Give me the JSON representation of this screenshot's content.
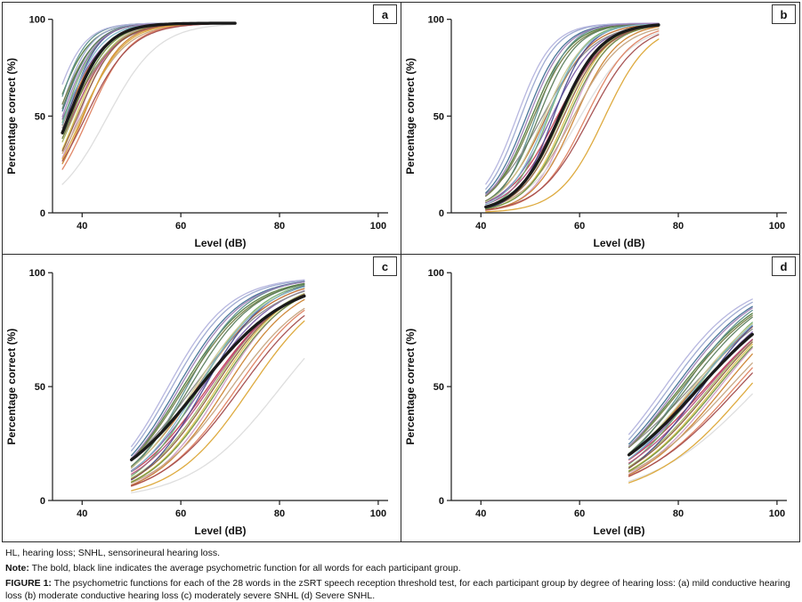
{
  "chart_data": {
    "type": "line",
    "description": "Psychometric functions (percentage correct vs presentation level in dB) for each of the 28 words of the zSRT speech reception threshold test, one panel per participant group; the bold black line is the average psychometric function for each group",
    "xlabel": "Level (dB)",
    "ylabel": "Percentage correct (%)",
    "x_ticks": [
      40,
      60,
      80,
      100
    ],
    "y_ticks": [
      0,
      50,
      100
    ],
    "x_domain": [
      34,
      102
    ],
    "y_domain": [
      0,
      100
    ],
    "legend": "none",
    "grid": false,
    "mean_color": "#1a1a1a",
    "palette": [
      "#4f7a3c",
      "#c0692b",
      "#9aa7cf",
      "#c23b4f",
      "#d9c44e",
      "#5d8f8f",
      "#7b5ea8",
      "#cf9cc6",
      "#8c8c8c",
      "#dcdcdc",
      "#3f6f93",
      "#a3b264",
      "#cc8433",
      "#6fae6f",
      "#b34e7e",
      "#737d43",
      "#c6a47e",
      "#4c4c90",
      "#de8160",
      "#5c7d5c",
      "#b3b3dd",
      "#8c5c3c",
      "#c8c890",
      "#7fb6c9",
      "#a34c4c",
      "#dca636",
      "#9e7fb6",
      "#6e8f3f"
    ],
    "panels": [
      {
        "panel_label": "a",
        "group": "mild conductive hearing loss",
        "x_start": 36,
        "x_end": 71,
        "y_max_percent": 98,
        "mean_curve": {
          "midpoint_db": 37.2,
          "slope_db": 3.8,
          "color": "#1a1a1a",
          "description": "average psychometric function"
        },
        "word_curves": {
          "count": 28,
          "midpoints_db": [
            34.2,
            36.6,
            35.1,
            37.4,
            38.6,
            34.6,
            36.1,
            39.2,
            37.0,
            45.0,
            35.5,
            38.1,
            40.1,
            36.3,
            37.9,
            34.9,
            39.6,
            36.9,
            41.2,
            35.3,
            33.6,
            38.9,
            37.3,
            36.5,
            40.6,
            39.9,
            35.9,
            37.7
          ],
          "slopes_db": [
            3.5,
            4.0,
            3.2,
            4.5,
            3.8,
            3.0,
            4.2,
            3.6,
            4.8,
            5.2,
            3.4,
            4.1,
            3.9,
            3.3,
            4.4,
            3.7,
            4.6,
            3.1,
            4.3,
            3.5,
            3.2,
            4.0,
            3.8,
            3.6,
            4.7,
            4.2,
            3.4,
            3.9
          ]
        }
      },
      {
        "panel_label": "b",
        "group": "moderate conductive hearing loss",
        "x_start": 41,
        "x_end": 76,
        "y_max_percent": 98,
        "mean_curve": {
          "midpoint_db": 55.8,
          "slope_db": 4.3,
          "color": "#1a1a1a",
          "description": "average psychometric function"
        },
        "word_curves": {
          "count": 28,
          "midpoints_db": [
            50.2,
            53.1,
            48.0,
            55.3,
            57.2,
            51.0,
            54.2,
            58.1,
            52.3,
            60.0,
            49.1,
            56.2,
            59.0,
            53.6,
            55.7,
            50.6,
            58.6,
            54.6,
            61.2,
            51.6,
            47.2,
            56.6,
            52.7,
            53.3,
            62.0,
            65.0,
            49.6,
            57.6
          ],
          "slopes_db": [
            4.0,
            4.5,
            3.6,
            5.0,
            4.2,
            3.5,
            4.6,
            4.0,
            5.2,
            5.5,
            3.8,
            4.4,
            4.3,
            3.7,
            4.8,
            4.1,
            5.0,
            3.6,
            4.7,
            3.9,
            3.6,
            4.4,
            4.2,
            4.0,
            5.1,
            4.6,
            3.8,
            4.3
          ]
        }
      },
      {
        "panel_label": "c",
        "group": "moderately severe SNHL",
        "x_start": 50,
        "x_end": 85,
        "y_max_percent": 98,
        "mean_curve": {
          "midpoint_db": 63.5,
          "slope_db": 9.0,
          "color": "#1a1a1a",
          "description": "average psychometric function"
        },
        "word_curves": {
          "count": 28,
          "midpoints_db": [
            60.2,
            63.1,
            58.0,
            65.3,
            67.2,
            61.0,
            64.2,
            68.1,
            62.3,
            80.0,
            59.1,
            66.2,
            69.0,
            63.6,
            65.7,
            60.6,
            70.1,
            64.6,
            71.2,
            61.6,
            57.2,
            66.6,
            62.7,
            63.3,
            72.0,
            74.0,
            59.6,
            67.6
          ],
          "slopes_db": [
            7.0,
            7.5,
            6.4,
            8.0,
            7.2,
            6.2,
            7.6,
            7.0,
            8.4,
            9.0,
            6.6,
            7.4,
            7.3,
            6.5,
            7.8,
            7.1,
            8.2,
            6.4,
            7.9,
            6.8,
            6.3,
            7.4,
            7.2,
            7.0,
            8.3,
            7.8,
            6.6,
            7.3
          ]
        }
      },
      {
        "panel_label": "d",
        "group": "Severe SNHL",
        "x_start": 70,
        "x_end": 95,
        "y_max_percent": 98,
        "mean_curve": {
          "midpoint_db": 84.0,
          "slope_db": 10.3,
          "color": "#1a1a1a",
          "description": "average psychometric function"
        },
        "word_curves": {
          "count": 28,
          "midpoints_db": [
            80.2,
            83.1,
            78.0,
            85.3,
            87.2,
            81.0,
            84.2,
            88.1,
            82.3,
            96.0,
            79.1,
            86.2,
            89.0,
            83.6,
            85.7,
            80.6,
            90.1,
            84.6,
            91.2,
            81.6,
            77.0,
            86.6,
            82.7,
            83.3,
            92.0,
            94.0,
            79.6,
            87.6
          ],
          "slopes_db": [
            9.0,
            9.5,
            8.2,
            10.2,
            9.2,
            8.0,
            9.6,
            9.0,
            10.6,
            11.0,
            8.4,
            9.4,
            9.3,
            8.3,
            9.8,
            9.1,
            10.4,
            8.2,
            10.0,
            8.8,
            8.1,
            9.4,
            9.2,
            9.0,
            10.5,
            9.8,
            8.4,
            9.3
          ]
        }
      }
    ]
  },
  "footnotes": {
    "abbreviations": "HL, hearing loss; SNHL, sensorineural hearing loss.",
    "note_label": "Note:",
    "note_text": " The bold, black line indicates the average psychometric function for all words for each participant group.",
    "figure_label": "FIGURE 1:",
    "figure_text": " The psychometric functions for each of the 28 words in the zSRT speech reception threshold test, for each participant group by degree of hearing loss: (a) mild conductive hearing loss (b) moderate conductive hearing loss (c) moderately severe SNHL (d) Severe SNHL."
  }
}
